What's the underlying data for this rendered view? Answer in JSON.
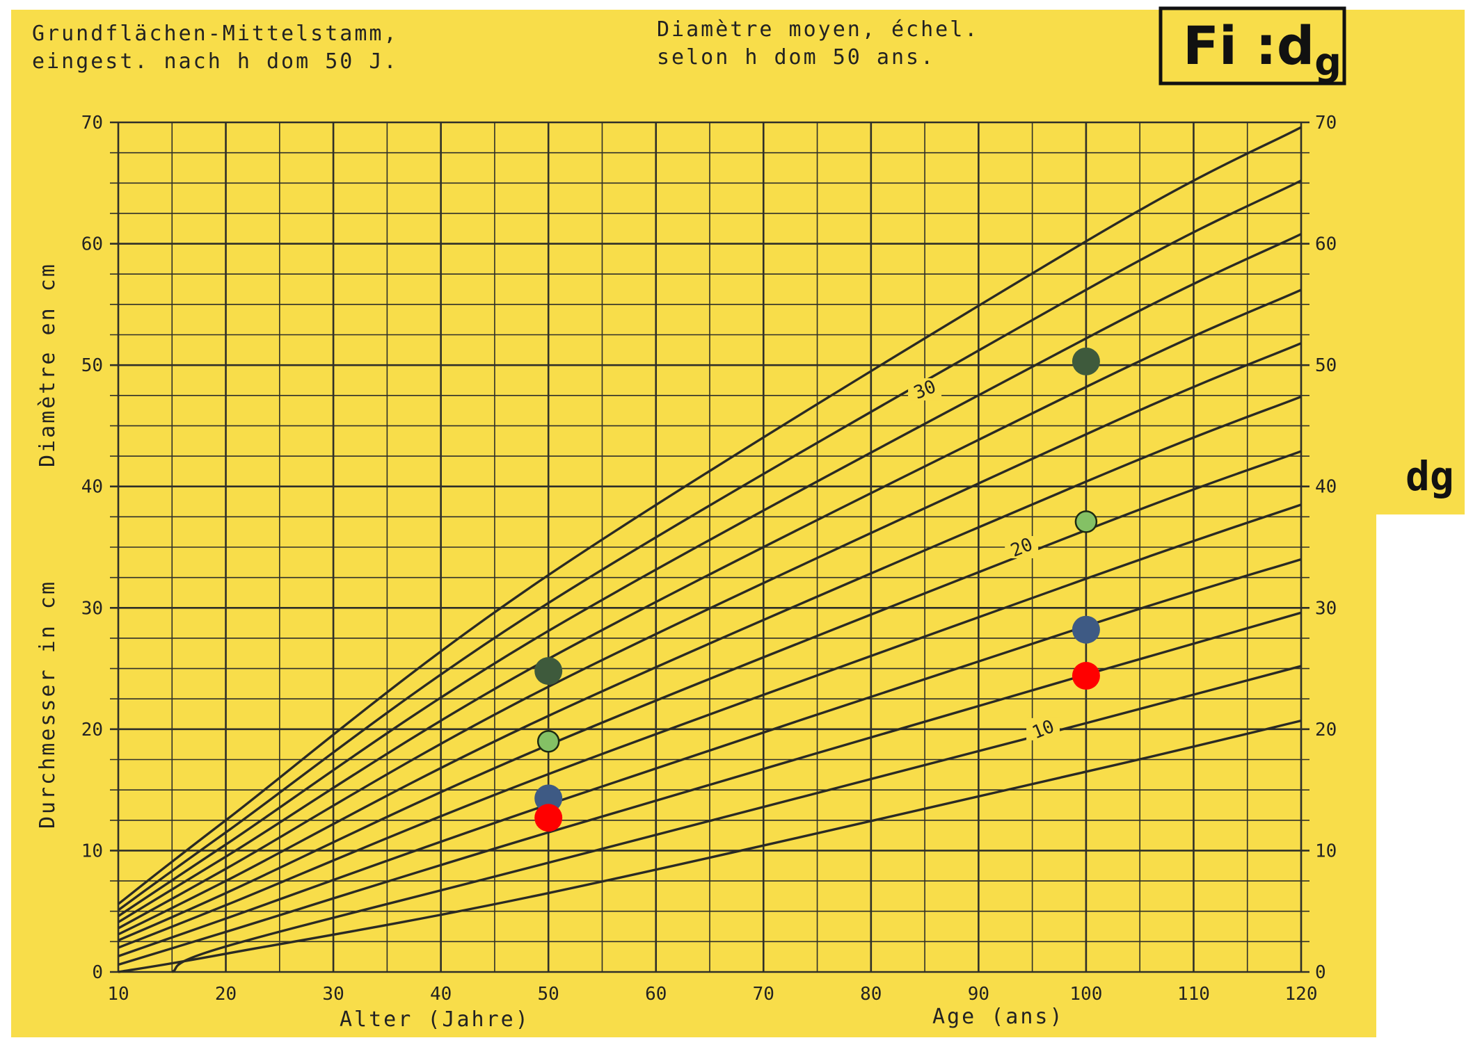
{
  "header": {
    "de_line1": "Grundflächen-Mittelstamm,",
    "de_line2": "eingest. nach h dom 50 J.",
    "fr_line1": "Diamètre  moyen, échel.",
    "fr_line2": "selon  h  dom  50  ans.",
    "badge_main": "Fi :d",
    "badge_sub": "g"
  },
  "side_label": "dg",
  "colors": {
    "background": "#f8dd4a",
    "grid": "#2f2f28",
    "curve": "#2a2a24",
    "dark_green": "#3e5a3c",
    "light_green": "#84c165",
    "blue": "#3e5a84",
    "red": "#ff0000"
  },
  "chart_data": {
    "type": "line",
    "title": "",
    "xlabel_de": "Alter (Jahre)",
    "xlabel_fr": "Age (ans)",
    "ylabel_fr": "Diamètre en cm",
    "ylabel_de": "Durchmesser in cm",
    "xlim": [
      10,
      120
    ],
    "ylim": [
      0,
      70
    ],
    "x_ticks": [
      10,
      20,
      30,
      40,
      50,
      60,
      70,
      80,
      90,
      100,
      110,
      120
    ],
    "y_ticks": [
      0,
      10,
      20,
      30,
      40,
      50,
      60,
      70
    ],
    "grid": true,
    "minor_x_step": 5,
    "minor_y_step": 2.5,
    "curve_labels": [
      {
        "text": "30",
        "x": 85,
        "y": 48
      },
      {
        "text": "20",
        "x": 94,
        "y": 35
      },
      {
        "text": "10",
        "x": 96,
        "y": 20
      }
    ],
    "series": [
      {
        "points": [
          [
            10,
            0
          ],
          [
            20,
            1.5
          ],
          [
            50,
            6.5
          ],
          [
            100,
            16.5
          ],
          [
            120,
            20.7
          ]
        ]
      },
      {
        "points": [
          [
            15,
            0
          ],
          [
            20,
            2.1
          ],
          [
            50,
            9
          ],
          [
            100,
            20.5
          ],
          [
            120,
            25.2
          ]
        ]
      },
      {
        "points": [
          [
            10,
            0.6
          ],
          [
            20,
            3.3
          ],
          [
            50,
            11.5
          ],
          [
            100,
            24.5
          ],
          [
            120,
            29.6
          ]
        ]
      },
      {
        "points": [
          [
            10,
            1.3
          ],
          [
            20,
            4.4
          ],
          [
            50,
            13.8
          ],
          [
            100,
            28.5
          ],
          [
            120,
            34
          ]
        ]
      },
      {
        "points": [
          [
            10,
            2
          ],
          [
            20,
            5.5
          ],
          [
            50,
            16.3
          ],
          [
            100,
            32.4
          ],
          [
            120,
            38.5
          ]
        ]
      },
      {
        "points": [
          [
            10,
            2.6
          ],
          [
            20,
            6.5
          ],
          [
            50,
            18.7
          ],
          [
            100,
            36.4
          ],
          [
            120,
            42.9
          ]
        ]
      },
      {
        "points": [
          [
            10,
            3.1
          ],
          [
            20,
            7.5
          ],
          [
            50,
            21.1
          ],
          [
            100,
            40.4
          ],
          [
            120,
            47.4
          ]
        ]
      },
      {
        "points": [
          [
            10,
            3.6
          ],
          [
            20,
            8.5
          ],
          [
            50,
            23.5
          ],
          [
            100,
            44.3
          ],
          [
            120,
            51.8
          ]
        ]
      },
      {
        "points": [
          [
            10,
            4.1
          ],
          [
            20,
            9.5
          ],
          [
            50,
            25.8
          ],
          [
            100,
            48.2
          ],
          [
            120,
            56.2
          ]
        ]
      },
      {
        "points": [
          [
            10,
            4.6
          ],
          [
            20,
            10.5
          ],
          [
            50,
            28.1
          ],
          [
            100,
            52.2
          ],
          [
            120,
            60.8
          ]
        ]
      },
      {
        "points": [
          [
            10,
            5.1
          ],
          [
            20,
            11.5
          ],
          [
            50,
            30.4
          ],
          [
            100,
            56.2
          ],
          [
            120,
            65.2
          ]
        ]
      },
      {
        "points": [
          [
            10,
            5.6
          ],
          [
            20,
            12.5
          ],
          [
            50,
            32.7
          ],
          [
            100,
            60.2
          ],
          [
            120,
            69.6
          ]
        ]
      }
    ],
    "markers": [
      {
        "x": 50,
        "y": 24.8,
        "color": "dark_green"
      },
      {
        "x": 50,
        "y": 19,
        "color": "light_green"
      },
      {
        "x": 50,
        "y": 14.3,
        "color": "blue"
      },
      {
        "x": 50,
        "y": 12.7,
        "color": "red"
      },
      {
        "x": 100,
        "y": 50.3,
        "color": "dark_green"
      },
      {
        "x": 100,
        "y": 37.1,
        "color": "light_green"
      },
      {
        "x": 100,
        "y": 28.2,
        "color": "blue"
      },
      {
        "x": 100,
        "y": 24.4,
        "color": "red"
      }
    ]
  }
}
